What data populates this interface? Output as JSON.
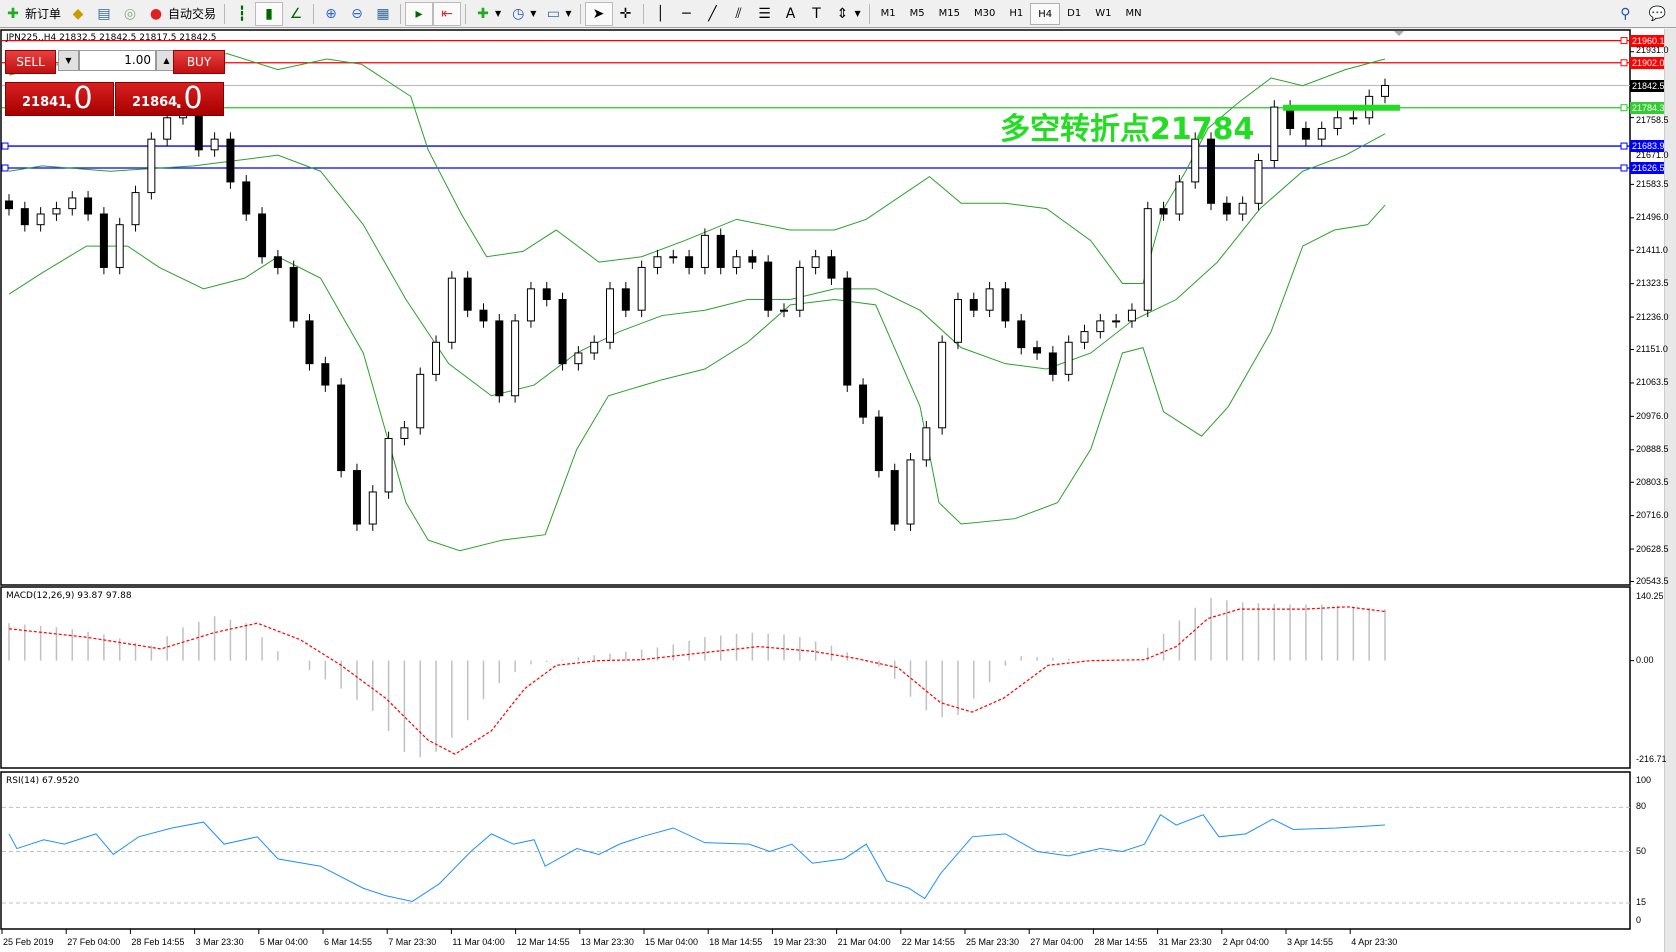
{
  "toolbar": {
    "new_order": "新订单",
    "auto_trading": "自动交易",
    "timeframes": [
      "M1",
      "M5",
      "M15",
      "M30",
      "H1",
      "H4",
      "D1",
      "W1",
      "MN"
    ],
    "active_timeframe": "H4"
  },
  "chart": {
    "header": "JPN225.,H4  21832.5 21842.5 21817.5 21842.5",
    "annotation": "多空转折点21784",
    "colors": {
      "bull_body": "#ffffff",
      "bear_body": "#000000",
      "bands": "#2ca02c",
      "annotation": "#22dd22",
      "macd_hist": "#c0c0c0",
      "macd_signal": "#ff0000",
      "rsi": "#1e90ff"
    },
    "price_ticks": [
      "21931.0",
      "21758.5",
      "21671.0",
      "21583.5",
      "21496.0",
      "21411.0",
      "21323.5",
      "21236.0",
      "21151.0",
      "21063.5",
      "20976.0",
      "20888.5",
      "20803.5",
      "20716.0",
      "20628.5",
      "20543.5"
    ],
    "hlines": [
      {
        "value": "21960.1",
        "color": "#ff0000",
        "tag_bg": "#ff0000"
      },
      {
        "value": "21902.0",
        "color": "#ff0000",
        "tag_bg": "#ff0000"
      },
      {
        "value": "21842.5",
        "color": "#c0c0c0",
        "tag_bg": "#000000"
      },
      {
        "value": "21784.3",
        "color": "#22cc22",
        "tag_bg": "#33cc33"
      },
      {
        "value": "21683.9",
        "color": "#0000ff",
        "tag_bg": "#0000ff"
      },
      {
        "value": "21626.5",
        "color": "#0000ff",
        "tag_bg": "#0000ff"
      }
    ],
    "time_labels": [
      "25 Feb 2019",
      "27 Feb 04:00",
      "28 Feb 14:55",
      "3 Mar 23:30",
      "5 Mar 04:00",
      "6 Mar 14:55",
      "7 Mar 23:30",
      "11 Mar 04:00",
      "12 Mar 14:55",
      "13 Mar 23:30",
      "15 Mar 04:00",
      "18 Mar 14:55",
      "19 Mar 23:30",
      "21 Mar 04:00",
      "22 Mar 14:55",
      "25 Mar 23:30",
      "27 Mar 04:00",
      "28 Mar 14:55",
      "31 Mar 23:30",
      "2 Apr 04:00",
      "3 Apr 14:55",
      "4 Apr 23:30"
    ]
  },
  "trade_panel": {
    "sell": "SELL",
    "buy": "BUY",
    "lot": "1.00",
    "sell_big": "21841",
    "sell_small": ".0",
    "buy_big": "21864",
    "buy_small": ".0"
  },
  "macd": {
    "label": "MACD(12,26,9) 93.87 97.88",
    "ticks": [
      "140.25",
      "0.00",
      "-216.71"
    ]
  },
  "rsi": {
    "label": "RSI(14) 67.9520",
    "ticks": [
      "100",
      "80",
      "50",
      "15",
      "0"
    ]
  },
  "chart_data": {
    "type": "candlestick",
    "symbol": "JPN225.",
    "timeframe": "H4",
    "ylim": [
      20543.5,
      21960.1
    ],
    "close": [
      21520,
      21478,
      21506,
      21520,
      21548,
      21506,
      21366,
      21478,
      21562,
      21702,
      21758,
      21772,
      21674,
      21702,
      21590,
      21506,
      21394,
      21366,
      21226,
      21114,
      21058,
      20834,
      20694,
      20778,
      20918,
      20946,
      21086,
      21170,
      21338,
      21254,
      21226,
      21030,
      21226,
      21310,
      21282,
      21114,
      21142,
      21170,
      21310,
      21254,
      21366,
      21394,
      21394,
      21366,
      21450,
      21366,
      21394,
      21380,
      21254,
      21254,
      21366,
      21394,
      21338,
      21058,
      20974,
      20834,
      20694,
      20862,
      20946,
      21170,
      21282,
      21254,
      21310,
      21226,
      21156,
      21142,
      21086,
      21170,
      21198,
      21226,
      21226,
      21254,
      21520,
      21506,
      21590,
      21702,
      21534,
      21506,
      21534,
      21646,
      21786,
      21730,
      21702,
      21730,
      21758,
      21758,
      21814,
      21842.5
    ],
    "bollinger": {
      "upper": [
        [
          0,
          21870
        ],
        [
          3.2,
          21898
        ],
        [
          5.3,
          21904
        ],
        [
          7.4,
          21898
        ],
        [
          9.5,
          21898
        ],
        [
          13.8,
          21926
        ],
        [
          17,
          21884
        ],
        [
          20.1,
          21912
        ],
        [
          22.3,
          21898
        ],
        [
          25.4,
          21814
        ],
        [
          26.5,
          21674
        ],
        [
          28.6,
          21506
        ],
        [
          30.2,
          21394
        ],
        [
          32.5,
          21408
        ],
        [
          34.6,
          21464
        ],
        [
          37.3,
          21380
        ],
        [
          40,
          21394
        ],
        [
          42.7,
          21436
        ],
        [
          46,
          21492
        ],
        [
          49.4,
          21464
        ],
        [
          52.2,
          21464
        ],
        [
          54.2,
          21492
        ],
        [
          56.2,
          21548
        ],
        [
          58.2,
          21604
        ],
        [
          60.2,
          21534
        ],
        [
          63,
          21534
        ],
        [
          65.6,
          21520
        ],
        [
          68.4,
          21436
        ],
        [
          70.4,
          21324
        ],
        [
          71.7,
          21324
        ],
        [
          73,
          21520
        ],
        [
          74.4,
          21618
        ],
        [
          75.8,
          21730
        ],
        [
          77.8,
          21800
        ],
        [
          79.8,
          21862
        ],
        [
          81.8,
          21842
        ],
        [
          84.5,
          21884
        ],
        [
          87,
          21912
        ]
      ],
      "middle": [
        [
          0,
          21618
        ],
        [
          2.1,
          21632
        ],
        [
          6.4,
          21618
        ],
        [
          11.7,
          21632
        ],
        [
          17,
          21660
        ],
        [
          19.7,
          21618
        ],
        [
          22.4,
          21478
        ],
        [
          25.1,
          21282
        ],
        [
          27.8,
          21114
        ],
        [
          30.5,
          21030
        ],
        [
          33.2,
          21058
        ],
        [
          35.9,
          21142
        ],
        [
          38.6,
          21198
        ],
        [
          41.3,
          21240
        ],
        [
          44,
          21254
        ],
        [
          46.7,
          21282
        ],
        [
          49.4,
          21282
        ],
        [
          52.2,
          21310
        ],
        [
          54.8,
          21310
        ],
        [
          57.6,
          21254
        ],
        [
          60.2,
          21156
        ],
        [
          63,
          21114
        ],
        [
          65.6,
          21100
        ],
        [
          68.4,
          21142
        ],
        [
          71,
          21226
        ],
        [
          73.8,
          21282
        ],
        [
          76.4,
          21380
        ],
        [
          79.1,
          21520
        ],
        [
          81.8,
          21618
        ],
        [
          84.5,
          21660
        ],
        [
          87,
          21716
        ]
      ],
      "lower": [
        [
          0,
          21296
        ],
        [
          2.1,
          21352
        ],
        [
          4.9,
          21422
        ],
        [
          7.5,
          21422
        ],
        [
          9.5,
          21366
        ],
        [
          12.3,
          21310
        ],
        [
          14.9,
          21338
        ],
        [
          17,
          21394
        ],
        [
          19.7,
          21338
        ],
        [
          22.4,
          21142
        ],
        [
          25.1,
          20750
        ],
        [
          26.5,
          20652
        ],
        [
          28.5,
          20624
        ],
        [
          31.2,
          20652
        ],
        [
          33.9,
          20666
        ],
        [
          35.9,
          20890
        ],
        [
          37.9,
          21030
        ],
        [
          41.3,
          21072
        ],
        [
          44,
          21100
        ],
        [
          46.7,
          21170
        ],
        [
          49.4,
          21268
        ],
        [
          52.2,
          21282
        ],
        [
          54.8,
          21268
        ],
        [
          57.6,
          21002
        ],
        [
          58.8,
          20750
        ],
        [
          60.2,
          20694
        ],
        [
          63.6,
          20708
        ],
        [
          66.3,
          20750
        ],
        [
          68.4,
          20890
        ],
        [
          70.4,
          21142
        ],
        [
          71.7,
          21156
        ],
        [
          73,
          20988
        ],
        [
          75.4,
          20924
        ],
        [
          77.1,
          21002
        ],
        [
          79.8,
          21198
        ],
        [
          81.8,
          21422
        ],
        [
          83.8,
          21464
        ],
        [
          85.9,
          21478
        ],
        [
          87,
          21529
        ]
      ]
    },
    "macd": {
      "ylim": [
        -216.71,
        140.25
      ],
      "histogram": [
        [
          0,
          80
        ],
        [
          3.5,
          70
        ],
        [
          6.2,
          55
        ],
        [
          8.9,
          30
        ],
        [
          10.9,
          70
        ],
        [
          13,
          95
        ],
        [
          15,
          80
        ],
        [
          17,
          20
        ],
        [
          19,
          -20
        ],
        [
          21,
          -60
        ],
        [
          23.1,
          -110
        ],
        [
          25.1,
          -200
        ],
        [
          26.5,
          -210
        ],
        [
          28.5,
          -150
        ],
        [
          30.5,
          -60
        ],
        [
          32.6,
          -10
        ],
        [
          34.6,
          0
        ],
        [
          36.6,
          10
        ],
        [
          39.3,
          20
        ],
        [
          41.4,
          30
        ],
        [
          44,
          50
        ],
        [
          46.8,
          60
        ],
        [
          49.5,
          55
        ],
        [
          52.2,
          30
        ],
        [
          53.5,
          10
        ],
        [
          55.5,
          -20
        ],
        [
          57.6,
          -100
        ],
        [
          59.6,
          -130
        ],
        [
          61.6,
          -60
        ],
        [
          63.6,
          10
        ],
        [
          66.4,
          5
        ],
        [
          69,
          0
        ],
        [
          71.1,
          0
        ],
        [
          72.4,
          40
        ],
        [
          73.8,
          80
        ],
        [
          75.8,
          135
        ],
        [
          77.8,
          125
        ],
        [
          80.5,
          120
        ],
        [
          83.2,
          120
        ],
        [
          87,
          110
        ]
      ],
      "signal": [
        [
          0,
          68
        ],
        [
          4.9,
          50
        ],
        [
          9.6,
          25
        ],
        [
          13,
          60
        ],
        [
          15.7,
          80
        ],
        [
          18.4,
          45
        ],
        [
          21,
          -10
        ],
        [
          23.8,
          -80
        ],
        [
          26.5,
          -170
        ],
        [
          28.2,
          -200
        ],
        [
          30.5,
          -150
        ],
        [
          32.6,
          -60
        ],
        [
          34.6,
          -10
        ],
        [
          37.3,
          0
        ],
        [
          40,
          2
        ],
        [
          43.4,
          15
        ],
        [
          47.4,
          30
        ],
        [
          50.8,
          20
        ],
        [
          53.5,
          5
        ],
        [
          56.2,
          -15
        ],
        [
          58.9,
          -90
        ],
        [
          60.9,
          -110
        ],
        [
          62.9,
          -80
        ],
        [
          65.7,
          -10
        ],
        [
          68.4,
          0
        ],
        [
          71.8,
          2
        ],
        [
          73.8,
          30
        ],
        [
          75.8,
          90
        ],
        [
          77.8,
          110
        ],
        [
          81.9,
          110
        ],
        [
          84.6,
          115
        ],
        [
          87,
          105
        ]
      ]
    },
    "rsi": {
      "ylim": [
        0,
        100
      ],
      "levels": [
        80,
        50,
        15
      ],
      "values": [
        [
          0,
          62
        ],
        [
          0.5,
          52
        ],
        [
          2.2,
          58
        ],
        [
          3.5,
          55
        ],
        [
          5.5,
          62
        ],
        [
          6.6,
          48
        ],
        [
          8.2,
          60
        ],
        [
          10.3,
          66
        ],
        [
          12.3,
          70
        ],
        [
          13.6,
          55
        ],
        [
          15.7,
          60
        ],
        [
          17,
          45
        ],
        [
          19.7,
          40
        ],
        [
          22.4,
          25
        ],
        [
          23.8,
          20
        ],
        [
          25.5,
          16
        ],
        [
          27.2,
          28
        ],
        [
          29.2,
          50
        ],
        [
          30.5,
          62
        ],
        [
          31.9,
          55
        ],
        [
          33.2,
          58
        ],
        [
          33.9,
          40
        ],
        [
          35.9,
          52
        ],
        [
          37.3,
          48
        ],
        [
          38.6,
          55
        ],
        [
          40,
          60
        ],
        [
          42,
          66
        ],
        [
          44,
          56
        ],
        [
          46.8,
          55
        ],
        [
          48.1,
          50
        ],
        [
          49.5,
          55
        ],
        [
          50.8,
          42
        ],
        [
          52.8,
          45
        ],
        [
          54.2,
          55
        ],
        [
          55.5,
          30
        ],
        [
          56.9,
          25
        ],
        [
          57.9,
          18
        ],
        [
          58.9,
          35
        ],
        [
          60.9,
          60
        ],
        [
          63,
          62
        ],
        [
          65,
          50
        ],
        [
          67,
          47
        ],
        [
          69,
          52
        ],
        [
          70.4,
          50
        ],
        [
          71.8,
          55
        ],
        [
          72.8,
          75
        ],
        [
          73.8,
          68
        ],
        [
          75.5,
          75
        ],
        [
          76.5,
          60
        ],
        [
          78.2,
          62
        ],
        [
          79.9,
          72
        ],
        [
          81.2,
          65
        ],
        [
          83.9,
          66
        ],
        [
          87,
          68
        ]
      ]
    }
  }
}
